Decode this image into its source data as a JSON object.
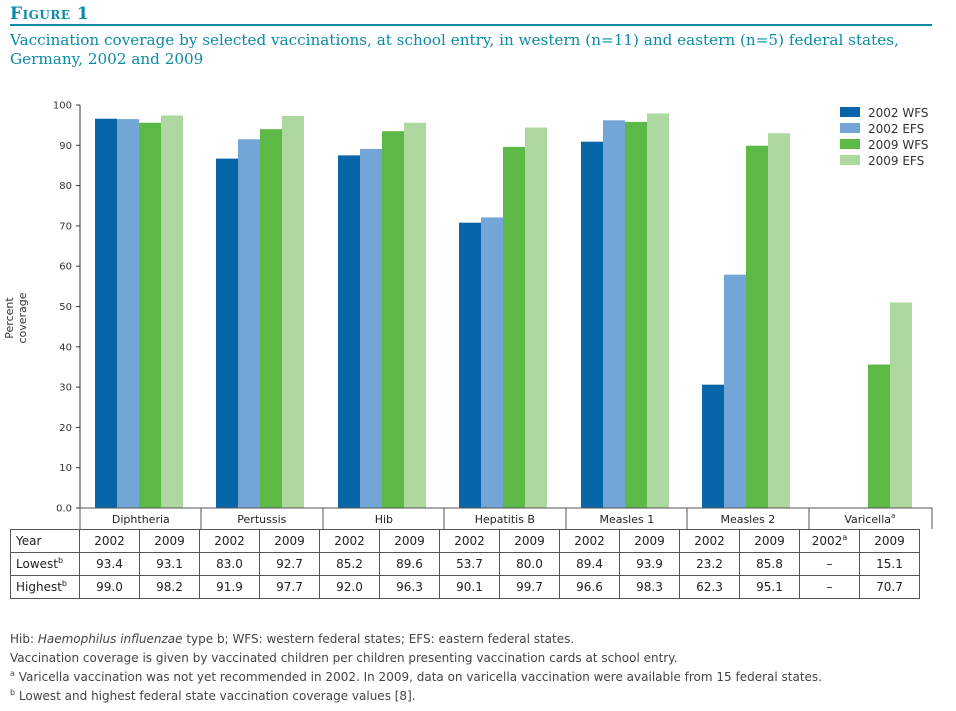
{
  "figure": {
    "label": "Figure 1",
    "title": "Vaccination coverage by selected vaccinations, at school entry, in western (n=11) and eastern (n=5) federal states, Germany, 2002 and 2009"
  },
  "chart_data": {
    "type": "bar",
    "categories": [
      "Diphtheria",
      "Pertussis",
      "Hib",
      "Hepatitis B",
      "Measles 1",
      "Measles 2",
      "Varicella"
    ],
    "category_footnotes": [
      "",
      "",
      "",
      "",
      "",
      "",
      "a"
    ],
    "series": [
      {
        "name": "2002 WFS",
        "color": "#0866a8",
        "values": [
          96.6,
          86.7,
          87.5,
          70.8,
          90.9,
          30.6,
          null
        ]
      },
      {
        "name": "2002 EFS",
        "color": "#73a6d6",
        "values": [
          96.5,
          91.5,
          89.1,
          72.1,
          96.2,
          57.9,
          null
        ]
      },
      {
        "name": "2009 WFS",
        "color": "#5db945",
        "values": [
          95.6,
          94.0,
          93.5,
          89.6,
          95.8,
          89.9,
          35.6
        ]
      },
      {
        "name": "2009 EFS",
        "color": "#add9a0",
        "values": [
          97.4,
          97.3,
          95.6,
          94.4,
          97.9,
          93.0,
          51.0
        ]
      }
    ],
    "ylabel": "Percent coverage",
    "ylim": [
      0,
      100
    ],
    "yticks": [
      "0.0",
      "10",
      "20",
      "30",
      "40",
      "50",
      "60",
      "70",
      "80",
      "90",
      "100"
    ],
    "legend_position": "top-right",
    "grid": false
  },
  "table": {
    "rows": [
      {
        "label": "Year",
        "sup": "",
        "cells": [
          "2002",
          "2009",
          "2002",
          "2009",
          "2002",
          "2009",
          "2002",
          "2009",
          "2002",
          "2009",
          "2002",
          "2009",
          "2002",
          "2009"
        ],
        "cell_sups": [
          "",
          "",
          "",
          "",
          "",
          "",
          "",
          "",
          "",
          "",
          "",
          "",
          "a",
          ""
        ]
      },
      {
        "label": "Lowest",
        "sup": "b",
        "cells": [
          "93.4",
          "93.1",
          "83.0",
          "92.7",
          "85.2",
          "89.6",
          "53.7",
          "80.0",
          "89.4",
          "93.9",
          "23.2",
          "85.8",
          "–",
          "15.1"
        ],
        "cell_sups": []
      },
      {
        "label": "Highest",
        "sup": "b",
        "cells": [
          "99.0",
          "98.2",
          "91.9",
          "97.7",
          "92.0",
          "96.3",
          "90.1",
          "99.7",
          "96.6",
          "98.3",
          "62.3",
          "95.1",
          "–",
          "70.7"
        ],
        "cell_sups": []
      }
    ]
  },
  "notes": {
    "hib_abbr": "Hib: ",
    "hib_italic": "Haemophilus influenzae",
    "hib_rest": " type b; WFS: western federal states; EFS: eastern federal states.",
    "line2": "Vaccination coverage is given by vaccinated children per children presenting vaccination cards at school entry.",
    "note_a_mark": "a",
    "note_a": " Varicella vaccination was not yet recommended in 2002. In 2009, data on varicella vaccination were available from 15 federal states.",
    "note_b_mark": "b",
    "note_b": " Lowest and highest federal state vaccination coverage values [8]."
  }
}
